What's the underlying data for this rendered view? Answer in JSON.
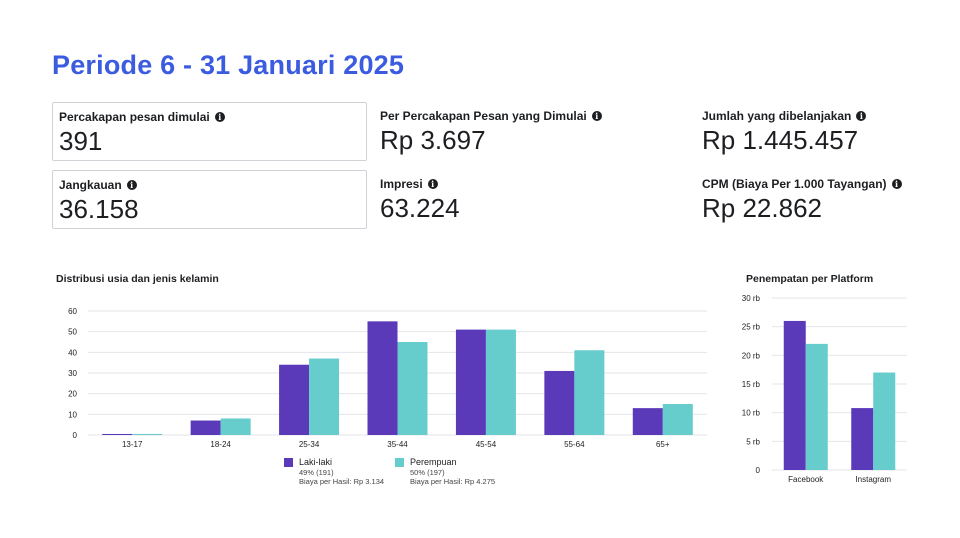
{
  "header": {
    "title": "Periode 6 - 31 Januari 2025"
  },
  "metrics": [
    {
      "id": "percakapan",
      "label": "Percakapan pesan dimulai",
      "value": "391"
    },
    {
      "id": "per-percakapan",
      "label": "Per Percakapan Pesan yang Dimulai",
      "value": "Rp 3.697"
    },
    {
      "id": "jumlah",
      "label": "Jumlah yang dibelanjakan",
      "value": "Rp 1.445.457"
    },
    {
      "id": "jangkauan",
      "label": "Jangkauan",
      "value": "36.158"
    },
    {
      "id": "impresi",
      "label": "Impresi",
      "value": "63.224"
    },
    {
      "id": "cpm",
      "label": "CPM (Biaya Per 1.000 Tayangan)",
      "value": "Rp 22.862"
    }
  ],
  "info_icon": "info-icon",
  "colors": {
    "title": "#3b5be0",
    "male": "#5a3ab8",
    "female": "#66cccc",
    "grid": "#e4e6ea"
  },
  "charts": {
    "age_gender_title": "Distribusi usia dan jenis kelamin",
    "platform_title": "Penempatan per Platform"
  },
  "legend": {
    "male": {
      "name": "Laki-laki",
      "share": "49% (191)",
      "cost": "Biaya per Hasil: Rp 3.134"
    },
    "female": {
      "name": "Perempuan",
      "share": "50% (197)",
      "cost": "Biaya per Hasil: Rp 4.275"
    }
  },
  "chart_data": [
    {
      "type": "bar",
      "title": "Distribusi usia dan jenis kelamin",
      "categories": [
        "13-17",
        "18-24",
        "25-34",
        "35-44",
        "45-54",
        "55-64",
        "65+"
      ],
      "series": [
        {
          "name": "Laki-laki",
          "values": [
            0.5,
            7,
            34,
            55,
            51,
            31,
            13
          ]
        },
        {
          "name": "Perempuan",
          "values": [
            0.5,
            8,
            37,
            45,
            51,
            41,
            15
          ]
        }
      ],
      "ylim": [
        0,
        60
      ],
      "yticks": [
        "0",
        "10",
        "20",
        "30",
        "40",
        "50",
        "60"
      ],
      "grid": true,
      "legend_position": "bottom"
    },
    {
      "type": "bar",
      "title": "Penempatan per Platform",
      "categories": [
        "Facebook",
        "Instagram"
      ],
      "series": [
        {
          "name": "Laki-laki",
          "values": [
            26000,
            10800
          ]
        },
        {
          "name": "Perempuan",
          "values": [
            22000,
            17000
          ]
        }
      ],
      "ylim": [
        0,
        30000
      ],
      "yticks": [
        "0",
        "5 rb",
        "10 rb",
        "15 rb",
        "20 rb",
        "25 rb",
        "30 rb"
      ],
      "grid": true
    }
  ]
}
